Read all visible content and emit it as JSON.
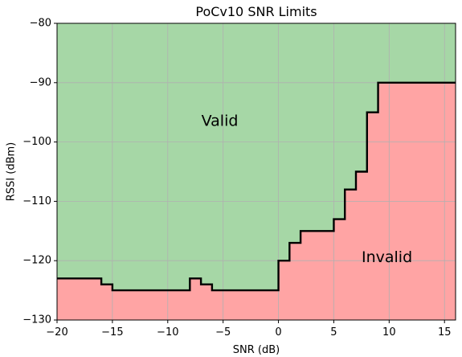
{
  "chart_data": {
    "type": "area",
    "title": "PoCv10 SNR Limits",
    "xlabel": "SNR (dB)",
    "ylabel": "RSSI (dBm)",
    "xlim": [
      -20,
      16
    ],
    "ylim": [
      -130,
      -80
    ],
    "xticks": [
      -20,
      -15,
      -10,
      -5,
      0,
      5,
      10,
      15
    ],
    "yticks": [
      -130,
      -120,
      -110,
      -100,
      -90,
      -80
    ],
    "xtick_labels": [
      "−20",
      "−15",
      "−10",
      "−5",
      "0",
      "5",
      "10",
      "15"
    ],
    "ytick_labels": [
      "−130",
      "−120",
      "−110",
      "−100",
      "−90",
      "−80"
    ],
    "grid": true,
    "boundary": {
      "style": "step-post",
      "x": [
        -20,
        -16,
        -15,
        -8,
        -7,
        -6,
        0,
        1,
        2,
        5,
        6,
        7,
        8,
        9,
        16
      ],
      "y": [
        -123,
        -124,
        -125,
        -123,
        -124,
        -125,
        -120,
        -117,
        -115,
        -113,
        -108,
        -105,
        -95,
        -90,
        -90
      ],
      "color": "#000000"
    },
    "regions": [
      {
        "label": "Valid",
        "position": "above",
        "color": "#a6d7a6",
        "label_x": -5.3,
        "label_y": -96.5
      },
      {
        "label": "Invalid",
        "position": "below",
        "color": "#ffa4a4",
        "label_x": 9.8,
        "label_y": -119.5
      }
    ]
  }
}
